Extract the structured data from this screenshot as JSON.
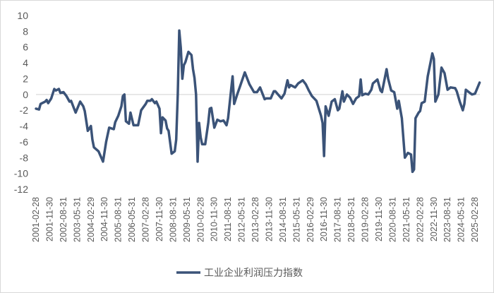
{
  "chart_data": {
    "type": "line",
    "title": "",
    "xlabel": "",
    "ylabel": "",
    "ylim": [
      -12,
      10
    ],
    "yticks": [
      "10",
      "8",
      "6",
      "4",
      "2",
      "0",
      "-2",
      "-4",
      "-6",
      "-8",
      "-10",
      "-12"
    ],
    "xticks": [
      "2001-02-28",
      "2001-11-30",
      "2002-08-31",
      "2003-05-31",
      "2004-02-29",
      "2004-11-30",
      "2005-08-31",
      "2006-05-31",
      "2007-02-28",
      "2007-11-30",
      "2008-08-31",
      "2009-05-31",
      "2010-02-28",
      "2010-11-30",
      "2011-08-31",
      "2012-05-31",
      "2013-02-28",
      "2013-11-30",
      "2014-08-31",
      "2015-05-31",
      "2016-02-29",
      "2016-11-30",
      "2017-08-31",
      "2018-05-31",
      "2019-02-28",
      "2019-11-30",
      "2020-08-31",
      "2021-05-31",
      "2022-02-28",
      "2022-11-30",
      "2023-08-31",
      "2024-05-31",
      "2025-02-28"
    ],
    "grid": "zero line only",
    "legend_position": "bottom",
    "colors": {
      "series": "#3b5378",
      "zero_line": "#d0d0d0",
      "text": "#595959"
    },
    "series": [
      {
        "name": "工业企业利润压力指数",
        "points": [
          [
            "2001-02",
            -1.8
          ],
          [
            "2001-04",
            -1.9
          ],
          [
            "2001-05",
            -1.2
          ],
          [
            "2001-08",
            -0.9
          ],
          [
            "2001-09",
            -0.7
          ],
          [
            "2001-10",
            -1.1
          ],
          [
            "2001-12",
            -0.5
          ],
          [
            "2002-02",
            0.7
          ],
          [
            "2002-03",
            0.5
          ],
          [
            "2002-05",
            0.7
          ],
          [
            "2002-06",
            0.2
          ],
          [
            "2002-08",
            0.3
          ],
          [
            "2002-10",
            -0.2
          ],
          [
            "2002-12",
            -0.9
          ],
          [
            "2003-01",
            -0.8
          ],
          [
            "2003-03",
            -1.8
          ],
          [
            "2003-04",
            -2.3
          ],
          [
            "2003-07",
            -0.9
          ],
          [
            "2003-09",
            -1.5
          ],
          [
            "2003-10",
            -2.1
          ],
          [
            "2003-12",
            -4.6
          ],
          [
            "2004-02",
            -4.0
          ],
          [
            "2004-03",
            -5.7
          ],
          [
            "2004-04",
            -6.7
          ],
          [
            "2004-07",
            -7.2
          ],
          [
            "2004-10",
            -8.5
          ],
          [
            "2004-12",
            -6.0
          ],
          [
            "2005-02",
            -4.2
          ],
          [
            "2005-05",
            -4.4
          ],
          [
            "2005-06",
            -3.5
          ],
          [
            "2005-08",
            -2.7
          ],
          [
            "2005-10",
            -1.5
          ],
          [
            "2005-11",
            -0.2
          ],
          [
            "2005-12",
            0.0
          ],
          [
            "2006-01",
            -3.4
          ],
          [
            "2006-03",
            -3.7
          ],
          [
            "2006-04",
            -2.3
          ],
          [
            "2006-06",
            -3.9
          ],
          [
            "2006-09",
            -3.9
          ],
          [
            "2006-11",
            -2.0
          ],
          [
            "2007-02",
            -1.2
          ],
          [
            "2007-03",
            -0.8
          ],
          [
            "2007-05",
            -0.8
          ],
          [
            "2007-06",
            -0.6
          ],
          [
            "2007-08",
            -1.1
          ],
          [
            "2007-09",
            -0.9
          ],
          [
            "2007-11",
            -1.8
          ],
          [
            "2007-12",
            -4.9
          ],
          [
            "2008-01",
            -2.9
          ],
          [
            "2008-03",
            -3.3
          ],
          [
            "2008-04",
            -4.3
          ],
          [
            "2008-05",
            -4.6
          ],
          [
            "2008-07",
            -7.5
          ],
          [
            "2008-09",
            -7.2
          ],
          [
            "2008-10",
            -5.7
          ],
          [
            "2008-11",
            0.0
          ],
          [
            "2008-12",
            8.1
          ],
          [
            "2009-01",
            5.9
          ],
          [
            "2009-02",
            2.0
          ],
          [
            "2009-03",
            3.7
          ],
          [
            "2009-04",
            4.1
          ],
          [
            "2009-06",
            5.4
          ],
          [
            "2009-08",
            5.0
          ],
          [
            "2009-09",
            3.2
          ],
          [
            "2009-10",
            2.1
          ],
          [
            "2009-11",
            0.0
          ],
          [
            "2009-12",
            -8.5
          ],
          [
            "2010-01",
            -3.6
          ],
          [
            "2010-02",
            -5.4
          ],
          [
            "2010-03",
            -6.3
          ],
          [
            "2010-05",
            -6.3
          ],
          [
            "2010-07",
            -3.6
          ],
          [
            "2010-08",
            -1.8
          ],
          [
            "2010-09",
            -1.7
          ],
          [
            "2010-11",
            -4.2
          ],
          [
            "2011-01",
            -3.2
          ],
          [
            "2011-03",
            -3.4
          ],
          [
            "2011-05",
            -3.3
          ],
          [
            "2011-07",
            -3.9
          ],
          [
            "2011-08",
            -3.0
          ],
          [
            "2011-10",
            0.6
          ],
          [
            "2011-11",
            2.3
          ],
          [
            "2011-12",
            -1.2
          ],
          [
            "2012-02",
            0.0
          ],
          [
            "2012-04",
            1.1
          ],
          [
            "2012-07",
            2.8
          ],
          [
            "2012-10",
            1.3
          ],
          [
            "2013-01",
            0.3
          ],
          [
            "2013-03",
            0.3
          ],
          [
            "2013-05",
            0.9
          ],
          [
            "2013-08",
            -0.6
          ],
          [
            "2013-09",
            -0.5
          ],
          [
            "2013-12",
            -0.5
          ],
          [
            "2014-02",
            0.4
          ],
          [
            "2014-03",
            0.4
          ],
          [
            "2014-07",
            -0.5
          ],
          [
            "2014-09",
            0.1
          ],
          [
            "2014-11",
            1.8
          ],
          [
            "2014-12",
            0.9
          ],
          [
            "2015-01",
            1.2
          ],
          [
            "2015-04",
            0.9
          ],
          [
            "2015-06",
            1.4
          ],
          [
            "2015-09",
            1.8
          ],
          [
            "2015-11",
            1.3
          ],
          [
            "2016-01",
            0.5
          ],
          [
            "2016-03",
            -0.2
          ],
          [
            "2016-06",
            -0.8
          ],
          [
            "2016-09",
            -2.7
          ],
          [
            "2016-10",
            -3.6
          ],
          [
            "2016-11",
            -7.8
          ],
          [
            "2016-12",
            -1.5
          ],
          [
            "2017-02",
            -2.7
          ],
          [
            "2017-04",
            -0.9
          ],
          [
            "2017-06",
            -0.6
          ],
          [
            "2017-08",
            -2.0
          ],
          [
            "2017-09",
            -1.8
          ],
          [
            "2017-11",
            0.4
          ],
          [
            "2017-12",
            -0.9
          ],
          [
            "2018-02",
            0.0
          ],
          [
            "2018-04",
            -0.4
          ],
          [
            "2018-06",
            -1.2
          ],
          [
            "2018-08",
            -0.5
          ],
          [
            "2018-10",
            -0.2
          ],
          [
            "2018-11",
            1.9
          ],
          [
            "2018-12",
            -0.1
          ],
          [
            "2019-02",
            0.1
          ],
          [
            "2019-04",
            0.0
          ],
          [
            "2019-06",
            0.6
          ],
          [
            "2019-07",
            1.4
          ],
          [
            "2019-10",
            1.9
          ],
          [
            "2019-12",
            0.5
          ],
          [
            "2020-01",
            0.3
          ],
          [
            "2020-04",
            3.2
          ],
          [
            "2020-05",
            2.0
          ],
          [
            "2020-07",
            0.5
          ],
          [
            "2020-09",
            0.3
          ],
          [
            "2020-11",
            -1.8
          ],
          [
            "2020-12",
            -0.8
          ],
          [
            "2021-02",
            -3.0
          ],
          [
            "2021-04",
            -8.0
          ],
          [
            "2021-06",
            -7.4
          ],
          [
            "2021-08",
            -7.6
          ],
          [
            "2021-09",
            -9.8
          ],
          [
            "2021-10",
            -9.5
          ],
          [
            "2021-11",
            -3.0
          ],
          [
            "2022-01",
            -2.3
          ],
          [
            "2022-02",
            -2.1
          ],
          [
            "2022-03",
            -1.1
          ],
          [
            "2022-05",
            -0.9
          ],
          [
            "2022-07",
            2.3
          ],
          [
            "2022-10",
            5.2
          ],
          [
            "2022-11",
            4.5
          ],
          [
            "2022-12",
            -0.9
          ],
          [
            "2023-02",
            0.0
          ],
          [
            "2023-04",
            3.4
          ],
          [
            "2023-06",
            2.7
          ],
          [
            "2023-08",
            0.6
          ],
          [
            "2023-10",
            0.9
          ],
          [
            "2024-01",
            0.8
          ],
          [
            "2024-02",
            0.4
          ],
          [
            "2024-04",
            -0.9
          ],
          [
            "2024-06",
            -2.0
          ],
          [
            "2024-07",
            -1.2
          ],
          [
            "2024-08",
            0.6
          ],
          [
            "2024-10",
            0.3
          ],
          [
            "2024-12",
            0.0
          ],
          [
            "2025-02",
            0.1
          ],
          [
            "2025-05",
            1.5
          ]
        ]
      }
    ]
  }
}
